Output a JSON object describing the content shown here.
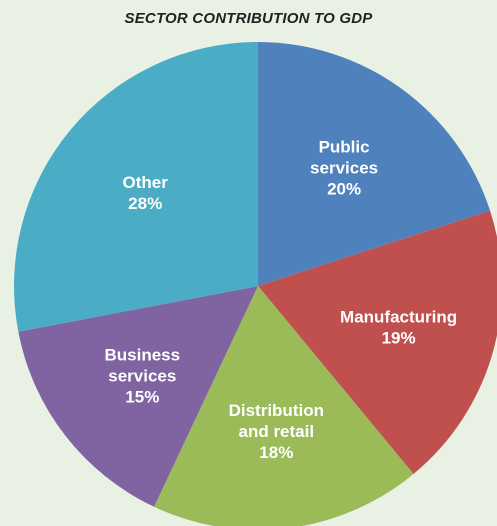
{
  "chart_data": {
    "type": "pie",
    "title": "SECTOR CONTRIBUTION TO GDP",
    "slices": [
      {
        "id": "public-services",
        "label_lines": [
          "Public",
          "services",
          "20%"
        ],
        "value": 20,
        "color": "#4f81bd"
      },
      {
        "id": "manufacturing",
        "label_lines": [
          "Manufacturing",
          "19%"
        ],
        "value": 19,
        "color": "#c0504d"
      },
      {
        "id": "distribution-retail",
        "label_lines": [
          "Distribution",
          "and retail",
          "18%"
        ],
        "value": 18,
        "color": "#9bbb59"
      },
      {
        "id": "business-services",
        "label_lines": [
          "Business",
          "services",
          "15%"
        ],
        "value": 15,
        "color": "#8064a2"
      },
      {
        "id": "other",
        "label_lines": [
          "Other",
          "28%"
        ],
        "value": 28,
        "color": "#4bacc6"
      }
    ]
  }
}
